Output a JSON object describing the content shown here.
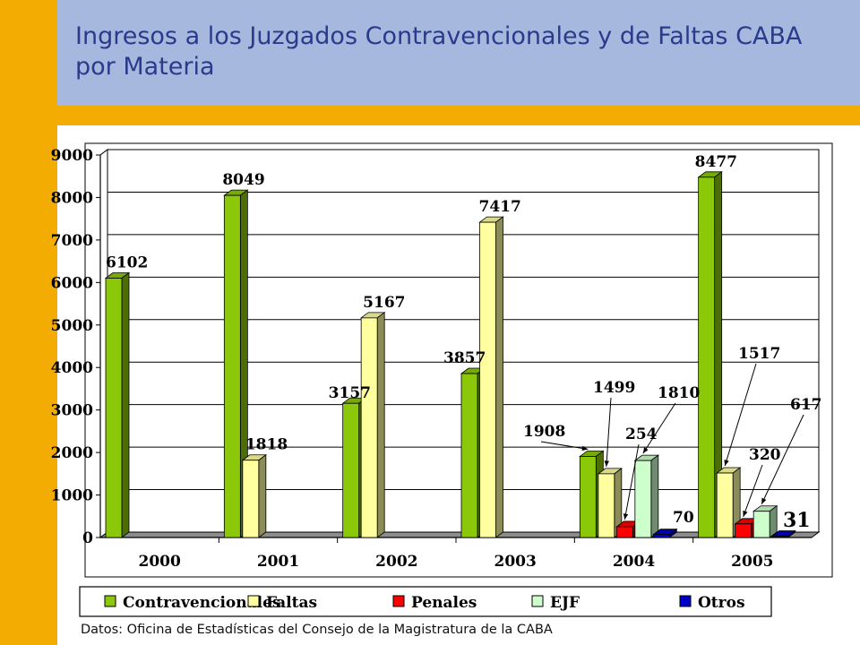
{
  "title": {
    "line1": "Ingresos a los Juzgados Contravencionales  y de Faltas CABA",
    "line2": "por Materia"
  },
  "footer": "Datos: Oficina de Estadísticas del Consejo de la Magistratura de la CABA",
  "colors": {
    "sidebar": "#f3ad02",
    "header": "#a6b8dd",
    "title": "#2a3a8c"
  },
  "chart_data": {
    "type": "bar",
    "categories": [
      "2000",
      "2001",
      "2002",
      "2003",
      "2004",
      "2005"
    ],
    "series": [
      {
        "name": "Contravencionales",
        "color": "#8cc80a",
        "values": [
          6102,
          8049,
          3157,
          3857,
          1908,
          8477
        ]
      },
      {
        "name": "Faltas",
        "color": "#ffffa0",
        "values": [
          null,
          1818,
          5167,
          7417,
          1499,
          1517
        ]
      },
      {
        "name": "Penales",
        "color": "#ff0000",
        "values": [
          null,
          null,
          null,
          null,
          254,
          320
        ]
      },
      {
        "name": "EJF",
        "color": "#ccffcc",
        "values": [
          null,
          null,
          null,
          null,
          1810,
          617
        ]
      },
      {
        "name": "Otros",
        "color": "#0000cc",
        "values": [
          null,
          null,
          null,
          null,
          70,
          31
        ]
      }
    ],
    "ylim": [
      0,
      9000
    ],
    "yticks": [
      0,
      1000,
      2000,
      3000,
      4000,
      5000,
      6000,
      7000,
      8000,
      9000
    ],
    "grid": true,
    "legend_position": "bottom",
    "data_labels": [
      {
        "category": "2000",
        "series": "Contravencionales",
        "text": "6102"
      },
      {
        "category": "2001",
        "series": "Contravencionales",
        "text": "8049"
      },
      {
        "category": "2001",
        "series": "Faltas",
        "text": "1818"
      },
      {
        "category": "2002",
        "series": "Contravencionales",
        "text": "3157"
      },
      {
        "category": "2002",
        "series": "Faltas",
        "text": "5167"
      },
      {
        "category": "2003",
        "series": "Contravencionales",
        "text": "3857"
      },
      {
        "category": "2003",
        "series": "Faltas",
        "text": "7417"
      },
      {
        "category": "2004",
        "series": "Contravencionales",
        "text": "1908"
      },
      {
        "category": "2004",
        "series": "Faltas",
        "text": "1499"
      },
      {
        "category": "2004",
        "series": "Penales",
        "text": "254"
      },
      {
        "category": "2004",
        "series": "EJF",
        "text": "1810"
      },
      {
        "category": "2004",
        "series": "Otros",
        "text": "70"
      },
      {
        "category": "2005",
        "series": "Contravencionales",
        "text": "8477"
      },
      {
        "category": "2005",
        "series": "Faltas",
        "text": "1517"
      },
      {
        "category": "2005",
        "series": "Penales",
        "text": "320"
      },
      {
        "category": "2005",
        "series": "EJF",
        "text": "617"
      },
      {
        "category": "2005",
        "series": "Otros",
        "text": "31"
      }
    ]
  }
}
